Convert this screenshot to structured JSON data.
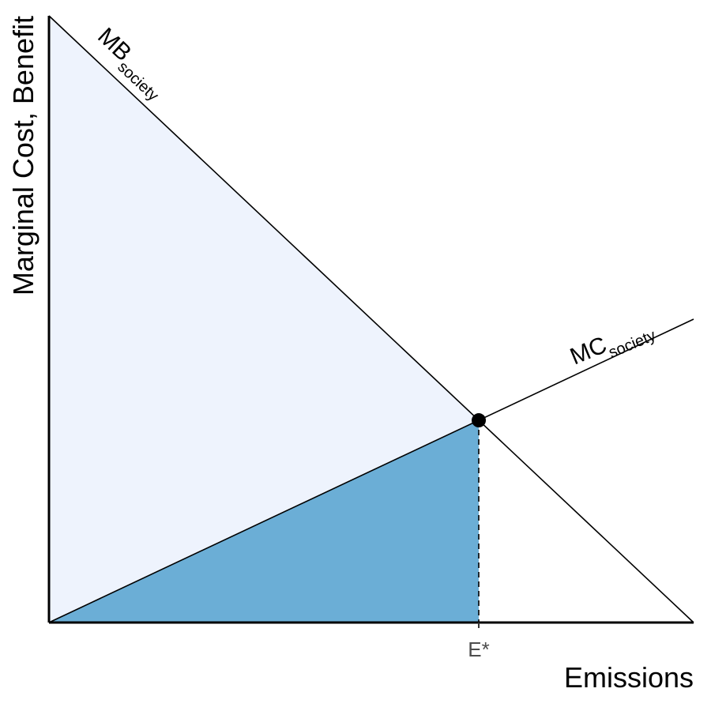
{
  "chart_data": {
    "type": "area",
    "xlabel": "Emissions",
    "ylabel": "Marginal Cost, Benefit",
    "xlim": [
      0,
      1
    ],
    "ylim": [
      0,
      1
    ],
    "grid": false,
    "series": [
      {
        "name": "MB",
        "name_subscript": "society",
        "kind": "line",
        "x": [
          0,
          1
        ],
        "y": [
          1,
          0
        ]
      },
      {
        "name": "MC",
        "name_subscript": "society",
        "kind": "line",
        "x": [
          0,
          1
        ],
        "y": [
          0,
          0.5
        ]
      }
    ],
    "equilibrium": {
      "x": 0.6667,
      "y": 0.3333,
      "tick_label": "E*"
    },
    "shaded_regions": [
      {
        "id": "benefit-area",
        "color": "#eef3fd",
        "polygon": [
          [
            0,
            0
          ],
          [
            0,
            1
          ],
          [
            0.6667,
            0.3333
          ],
          [
            0.6667,
            0
          ]
        ]
      },
      {
        "id": "cost-area",
        "color": "#6baed6",
        "polygon": [
          [
            0,
            0
          ],
          [
            0.6667,
            0.3333
          ],
          [
            0.6667,
            0
          ]
        ]
      }
    ]
  }
}
